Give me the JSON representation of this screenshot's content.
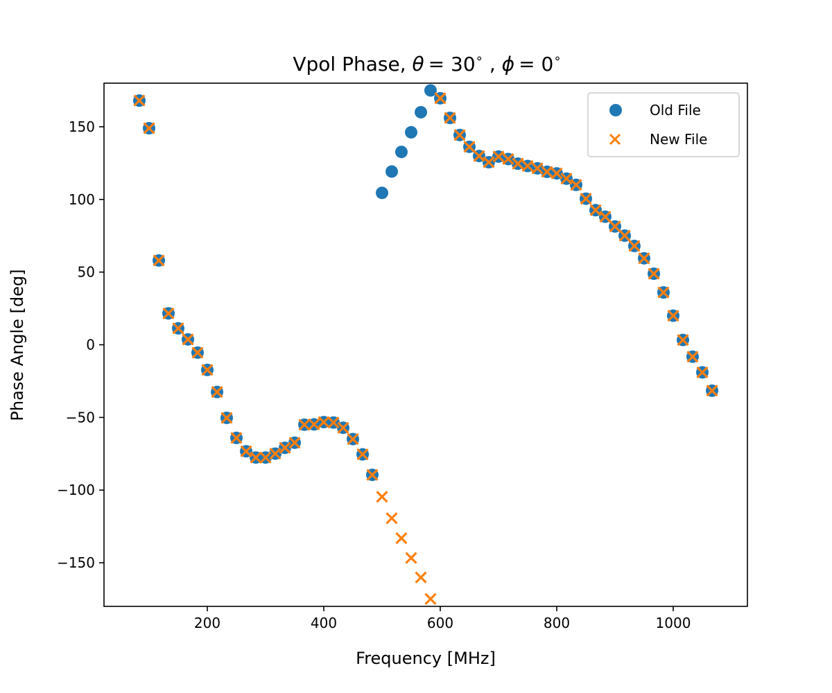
{
  "chart_data": {
    "type": "scatter",
    "title": "Vpol Phase, θ = 30°, φ = 0°",
    "title_parts": {
      "prefix": "Vpol Phase, ",
      "theta_symbol": "θ",
      "theta_value": "= 30",
      "degree": "∘",
      "separator": " , ",
      "phi_symbol": "ϕ",
      "phi_value": "= 0"
    },
    "xlabel": "Frequency [MHz]",
    "ylabel": "Phase Angle [deg]",
    "xlim": [
      22.6,
      1127.4
    ],
    "ylim": [
      -180,
      180
    ],
    "xticks": [
      200,
      400,
      600,
      800,
      1000
    ],
    "xtick_labels": [
      "200",
      "400",
      "600",
      "800",
      "1000"
    ],
    "yticks": [
      150,
      100,
      50,
      0,
      -50,
      -100,
      -150
    ],
    "ytick_labels": [
      "150",
      "100",
      "50",
      "0",
      "−50",
      "−100",
      "−150"
    ],
    "grid": false,
    "legend": {
      "position": "top-right",
      "entries": [
        "Old File",
        "New File"
      ]
    },
    "x": [
      83.3,
      100,
      116.7,
      133.3,
      150,
      166.7,
      183.3,
      200,
      216.7,
      233.3,
      250,
      266.7,
      283.3,
      300,
      316.7,
      333.3,
      350,
      366.7,
      383.3,
      400,
      416.7,
      433.3,
      450,
      466.7,
      483.3,
      500,
      516.7,
      533.3,
      550,
      566.7,
      583.3,
      600,
      616.7,
      633.3,
      650,
      666.7,
      683.3,
      700,
      716.7,
      733.3,
      750,
      766.7,
      783.3,
      800,
      816.7,
      833.3,
      850,
      866.7,
      883.3,
      900,
      916.7,
      933.3,
      950,
      966.7,
      983.3,
      1000,
      1016.7,
      1033.3,
      1050,
      1066.7
    ],
    "series": [
      {
        "name": "Old File",
        "marker": "circle",
        "color": "#1f77b4",
        "values": [
          168,
          149,
          58,
          21.6,
          11.3,
          3.7,
          -5.4,
          -17.3,
          -32.5,
          -50.3,
          -64.1,
          -73.3,
          -77.6,
          -77.6,
          -74.9,
          -70.9,
          -67.4,
          -55,
          -54.8,
          -53.2,
          -53.5,
          -57.1,
          -64.9,
          -75.4,
          -89.5,
          104.5,
          119.2,
          132.7,
          146.2,
          160,
          175,
          169.6,
          156.1,
          144.3,
          136.2,
          129.9,
          125.6,
          129.5,
          127.8,
          124.6,
          123,
          121.4,
          119,
          117.9,
          114.3,
          110,
          100.5,
          92.6,
          88.1,
          81.4,
          75.1,
          68,
          59.5,
          48.9,
          36,
          20,
          3.3,
          -8.2,
          -19,
          -31.6
        ]
      },
      {
        "name": "New File",
        "marker": "x",
        "color": "#ff7f0e",
        "values": [
          168,
          149,
          58,
          21.6,
          11.3,
          3.7,
          -5.4,
          -17.3,
          -32.5,
          -50.3,
          -64.1,
          -73.3,
          -77.6,
          -77.6,
          -74.9,
          -70.9,
          -67.4,
          -55,
          -54.8,
          -53.2,
          -53.5,
          -57.1,
          -64.9,
          -75.4,
          -89.5,
          -104.6,
          -119.3,
          -133.1,
          -146.7,
          -160.1,
          -174.9,
          169.6,
          156.1,
          144.3,
          136.2,
          129.9,
          125.6,
          129.5,
          127.8,
          124.6,
          123,
          121.4,
          119,
          117.9,
          114.3,
          110,
          100.5,
          92.6,
          88.1,
          81.4,
          75.1,
          68,
          59.5,
          48.9,
          36,
          20,
          3.3,
          -8.2,
          -19,
          -31.6
        ]
      }
    ]
  }
}
